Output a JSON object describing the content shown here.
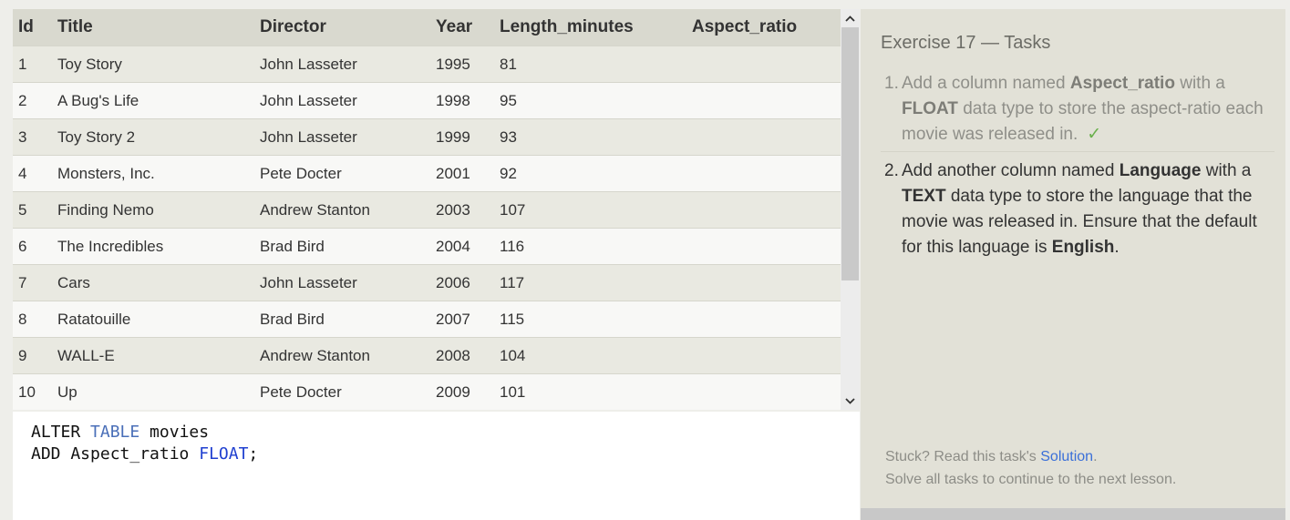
{
  "table": {
    "columns": [
      "Id",
      "Title",
      "Director",
      "Year",
      "Length_minutes",
      "Aspect_ratio"
    ],
    "rows": [
      [
        "1",
        "Toy Story",
        "John Lasseter",
        "1995",
        "81",
        ""
      ],
      [
        "2",
        "A Bug's Life",
        "John Lasseter",
        "1998",
        "95",
        ""
      ],
      [
        "3",
        "Toy Story 2",
        "John Lasseter",
        "1999",
        "93",
        ""
      ],
      [
        "4",
        "Monsters, Inc.",
        "Pete Docter",
        "2001",
        "92",
        ""
      ],
      [
        "5",
        "Finding Nemo",
        "Andrew Stanton",
        "2003",
        "107",
        ""
      ],
      [
        "6",
        "The Incredibles",
        "Brad Bird",
        "2004",
        "116",
        ""
      ],
      [
        "7",
        "Cars",
        "John Lasseter",
        "2006",
        "117",
        ""
      ],
      [
        "8",
        "Ratatouille",
        "Brad Bird",
        "2007",
        "115",
        ""
      ],
      [
        "9",
        "WALL-E",
        "Andrew Stanton",
        "2008",
        "104",
        ""
      ],
      [
        "10",
        "Up",
        "Pete Docter",
        "2009",
        "101",
        ""
      ]
    ]
  },
  "scrollbar": {
    "up_icon": "chevron-up-icon",
    "down_icon": "chevron-down-icon"
  },
  "editor": {
    "line1": {
      "pre": "ALTER ",
      "kw": "TABLE",
      "post": " movies"
    },
    "line2": {
      "pre": "ADD Aspect_ratio ",
      "kw": "FLOAT",
      "post": ";"
    }
  },
  "tasks": {
    "title": "Exercise 17 — Tasks",
    "task1": {
      "num": "1.",
      "t1": "Add a column named ",
      "b1": "Aspect_ratio",
      "t2": " with a ",
      "b2": "FLOAT",
      "t3": " data type to store the aspect-ratio each movie was released in.",
      "check": "✓"
    },
    "task2": {
      "num": "2.",
      "t1": "Add another column named ",
      "b1": "Language",
      "t2": " with a ",
      "b2": "TEXT",
      "t3": " data type to store the language that the movie was released in. Ensure that the default for this language is ",
      "b3": "English",
      "t4": "."
    },
    "stuck_prefix": "Stuck? Read this task's ",
    "solution_link": "Solution",
    "stuck_suffix": ".",
    "continue_text": "Solve all tasks to continue to the next lesson."
  },
  "colors": {
    "link": "#3a6fd8",
    "keyword": "#1f3fd0",
    "check": "#6ab04c"
  }
}
